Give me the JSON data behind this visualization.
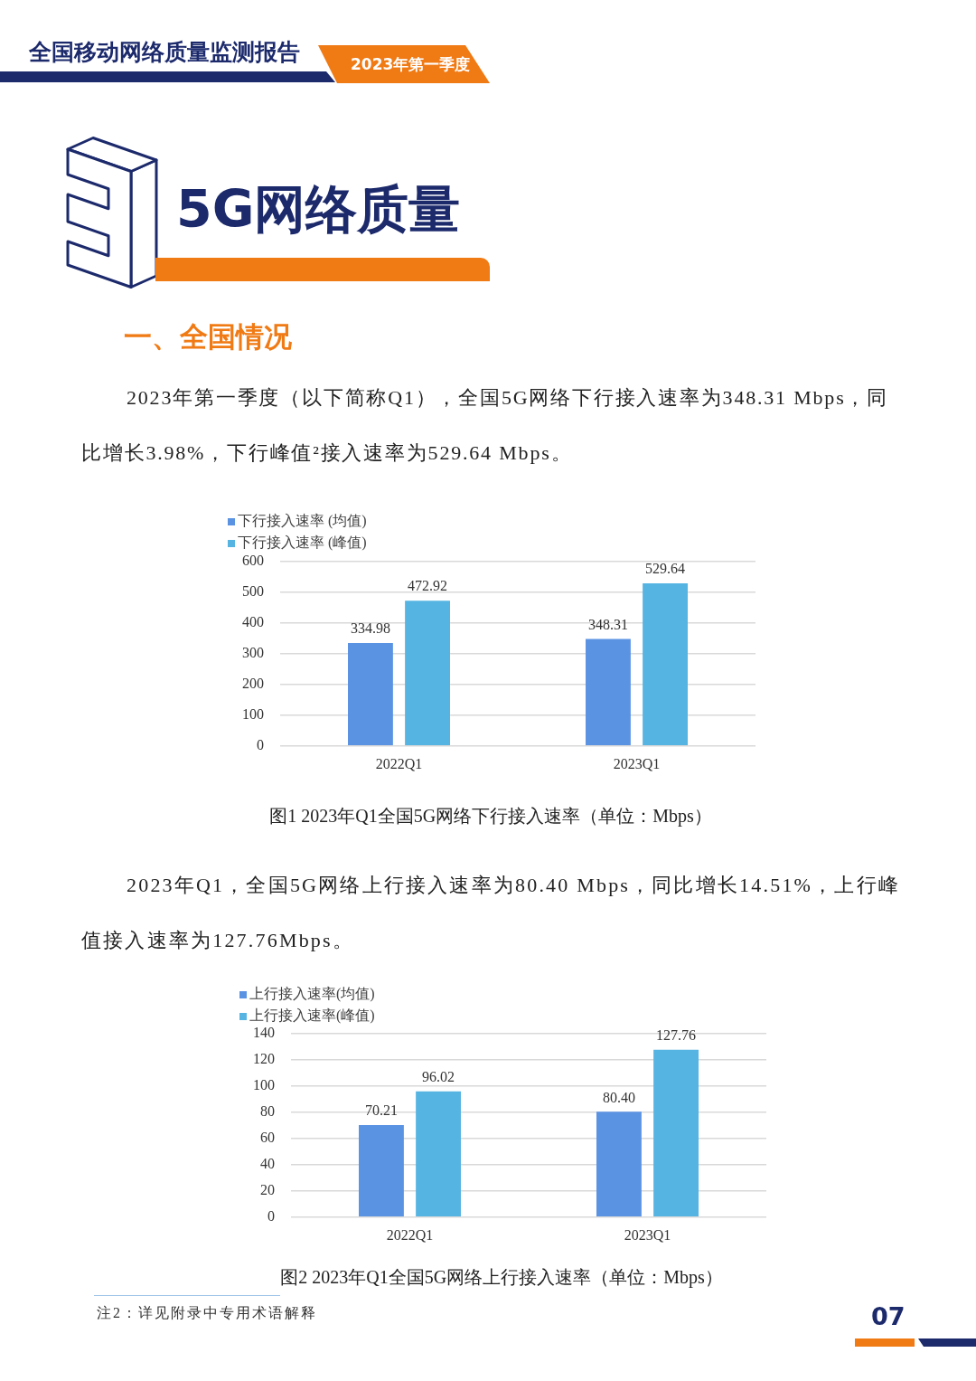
{
  "chart_data": [
    {
      "type": "bar",
      "title": "图1 2023年Q1全国5G网络下行接入速率（单位：Mbps）",
      "categories": [
        "2022Q1",
        "2023Q1"
      ],
      "series": [
        {
          "name": "下行接入速率 (均值)",
          "color": "#5b93e3",
          "values": [
            334.98,
            348.31
          ]
        },
        {
          "name": "下行接入速率 (峰值)",
          "color": "#56b4e2",
          "values": [
            472.92,
            529.64
          ]
        }
      ],
      "ylim": [
        0,
        600
      ],
      "yticks": [
        0,
        100,
        200,
        300,
        400,
        500,
        600
      ],
      "grid": "y",
      "legend": "top left",
      "data_labels": true,
      "annotations": [
        "全国移动网络质量监测报告",
        "2023年第一季度",
        "5G网络质量",
        "一、全国情况",
        "2023年第一季度（以下简称Q1），全国5G网络下行接入速率为348.31 Mbps，同比增长3.98%，下行峰值²接入速率为529.64 Mbps。"
      ]
    },
    {
      "type": "bar",
      "title": "图2 2023年Q1全国5G网络上行接入速率（单位：Mbps）",
      "categories": [
        "2022Q1",
        "2023Q1"
      ],
      "series": [
        {
          "name": "上行接入速率(均值)",
          "color": "#5b93e3",
          "values": [
            70.21,
            80.4
          ],
          "value_labels": [
            "70.21",
            "80.40"
          ]
        },
        {
          "name": "上行接入速率(峰值)",
          "color": "#56b4e2",
          "values": [
            96.02,
            127.76
          ],
          "value_labels": [
            "96.02",
            "127.76"
          ]
        }
      ],
      "ylim": [
        0,
        140
      ],
      "yticks": [
        0,
        20,
        40,
        60,
        80,
        100,
        120,
        140
      ],
      "grid": "y",
      "legend": "top left",
      "annotations": [
        "2023年Q1，全国5G网络上行接入速率为80.40 Mbps，同比增长14.51%，上行峰值接入速率为127.76Mbps。",
        "注2：详见附录中专用术语解释",
        "07"
      ]
    }
  ]
}
